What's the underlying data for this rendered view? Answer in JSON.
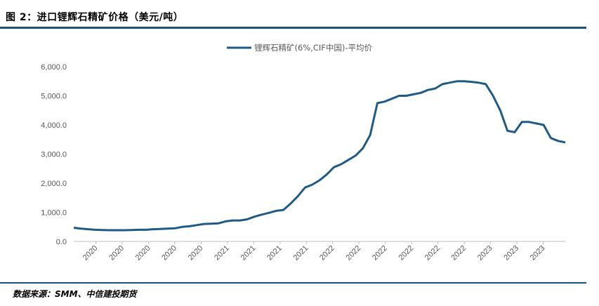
{
  "header": {
    "title": "图 2：进口锂辉石精矿价格（美元/吨）"
  },
  "footer": {
    "source": "数据来源：SMM、中信建投期货"
  },
  "colors": {
    "line": "#1f5b86",
    "rule": "#1f4e79"
  },
  "chart_data": {
    "type": "line",
    "title": "",
    "xlabel": "",
    "ylabel": "",
    "ylim": [
      0,
      6000
    ],
    "y_ticks": [
      "0.0",
      "1,000.0",
      "2,000.0",
      "3,000.0",
      "4,000.0",
      "5,000.0",
      "6,000.0"
    ],
    "x_ticks": [
      "2020",
      "2020",
      "2020",
      "2020",
      "2020",
      "2021",
      "2021",
      "2021",
      "2021",
      "2022",
      "2022",
      "2022",
      "2022",
      "2022",
      "2022",
      "2023",
      "2023",
      "2023"
    ],
    "legend": {
      "position": "top-center",
      "entries": [
        "锂辉石精矿(6%,CIF中国)-平均价"
      ]
    },
    "grid": false,
    "series": [
      {
        "name": "锂辉石精矿(6%,CIF中国)-平均价",
        "values": [
          470,
          440,
          420,
          400,
          390,
          385,
          385,
          385,
          390,
          400,
          400,
          420,
          430,
          440,
          450,
          500,
          520,
          560,
          600,
          610,
          620,
          690,
          720,
          720,
          760,
          850,
          920,
          980,
          1050,
          1080,
          1300,
          1550,
          1850,
          1950,
          2100,
          2300,
          2550,
          2650,
          2800,
          2950,
          3200,
          3650,
          4750,
          4800,
          4900,
          5000,
          5000,
          5050,
          5100,
          5200,
          5250,
          5400,
          5450,
          5500,
          5500,
          5480,
          5450,
          5400,
          5000,
          4500,
          3800,
          3750,
          4100,
          4100,
          4050,
          4000,
          3550,
          3450,
          3400
        ]
      }
    ]
  }
}
